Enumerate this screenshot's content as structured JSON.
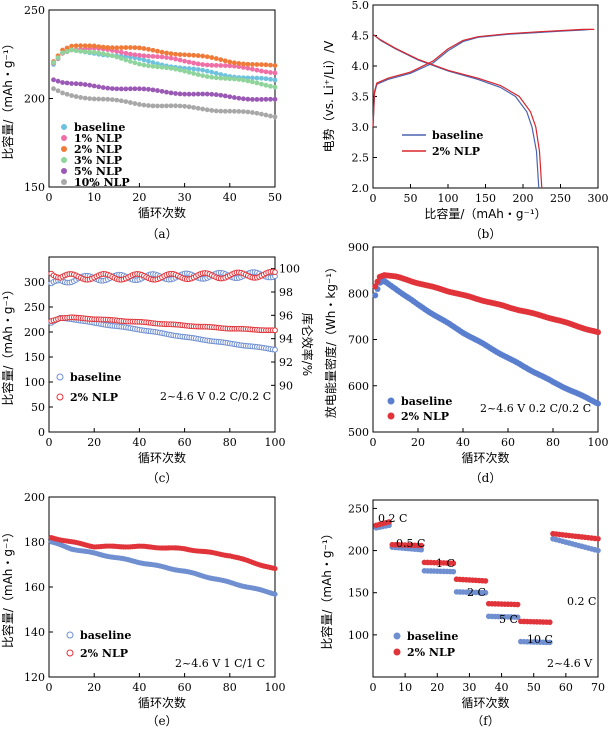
{
  "chart_data": [
    {
      "type": "scatter",
      "caption": "（a）",
      "xlabel": "循环次数",
      "ylabel": "比容量/（mAh・g⁻¹）",
      "xlim": [
        0,
        50
      ],
      "ylim": [
        150,
        250
      ],
      "xticks": [
        0,
        10,
        20,
        30,
        40,
        50
      ],
      "yticks": [
        150,
        200,
        250
      ],
      "legend": "bottom-left",
      "series": [
        {
          "name": "baseline",
          "color": "#6fc2df",
          "anchors": [
            [
              1,
              219
            ],
            [
              3,
              225
            ],
            [
              5,
              227
            ],
            [
              10,
              226
            ],
            [
              20,
              222
            ],
            [
              30,
              217
            ],
            [
              40,
              213
            ],
            [
              50,
              210
            ]
          ]
        },
        {
          "name": "1% NLP",
          "color": "#f06fa6",
          "anchors": [
            [
              1,
              220
            ],
            [
              3,
              226
            ],
            [
              5,
              228
            ],
            [
              10,
              228
            ],
            [
              20,
              225
            ],
            [
              30,
              221
            ],
            [
              40,
              218
            ],
            [
              50,
              215
            ]
          ]
        },
        {
          "name": "2% NLP",
          "color": "#f07b39",
          "anchors": [
            [
              1,
              221
            ],
            [
              3,
              227
            ],
            [
              5,
              229
            ],
            [
              10,
              230
            ],
            [
              20,
              228
            ],
            [
              30,
              225
            ],
            [
              40,
              221
            ],
            [
              50,
              218
            ]
          ]
        },
        {
          "name": "3% NLP",
          "color": "#8fd49a",
          "anchors": [
            [
              1,
              220
            ],
            [
              3,
              226
            ],
            [
              5,
              228
            ],
            [
              10,
              226
            ],
            [
              20,
              220
            ],
            [
              30,
              215
            ],
            [
              40,
              211
            ],
            [
              50,
              207
            ]
          ]
        },
        {
          "name": "5% NLP",
          "color": "#9b59b6",
          "anchors": [
            [
              1,
              211
            ],
            [
              3,
              209
            ],
            [
              5,
              208
            ],
            [
              10,
              207
            ],
            [
              20,
              205
            ],
            [
              30,
              203
            ],
            [
              40,
              201
            ],
            [
              50,
              199
            ]
          ]
        },
        {
          "name": "10% NLP",
          "color": "#a8a8a8",
          "anchors": [
            [
              1,
              205
            ],
            [
              3,
              203
            ],
            [
              5,
              202
            ],
            [
              10,
              200
            ],
            [
              20,
              197
            ],
            [
              30,
              195
            ],
            [
              40,
              193
            ],
            [
              50,
              190
            ]
          ]
        }
      ]
    },
    {
      "type": "line",
      "caption": "（b）",
      "xlabel": "比容量/（mAh・g⁻¹）",
      "ylabel": "电势（vs. Li⁺/Li）/V",
      "xlim": [
        0,
        300
      ],
      "ylim": [
        2.0,
        5.0
      ],
      "xticks": [
        0,
        50,
        100,
        150,
        200,
        250,
        300
      ],
      "yticks": [
        2.0,
        2.5,
        3.0,
        3.5,
        4.0,
        4.5,
        5.0
      ],
      "legend": "lower-middle",
      "series": [
        {
          "name": "baseline",
          "color": "#4a64b0",
          "charge": [
            [
              0,
              3.0
            ],
            [
              2,
              3.55
            ],
            [
              5,
              3.7
            ],
            [
              20,
              3.78
            ],
            [
              50,
              3.88
            ],
            [
              80,
              4.05
            ],
            [
              100,
              4.25
            ],
            [
              120,
              4.4
            ],
            [
              140,
              4.47
            ],
            [
              180,
              4.52
            ],
            [
              220,
              4.55
            ],
            [
              250,
              4.57
            ],
            [
              280,
              4.59
            ],
            [
              290,
              4.6
            ]
          ],
          "discharge": [
            [
              0,
              4.52
            ],
            [
              10,
              4.42
            ],
            [
              30,
              4.28
            ],
            [
              60,
              4.1
            ],
            [
              100,
              3.92
            ],
            [
              140,
              3.78
            ],
            [
              170,
              3.65
            ],
            [
              190,
              3.5
            ],
            [
              205,
              3.25
            ],
            [
              212,
              3.0
            ],
            [
              218,
              2.6
            ],
            [
              221,
              2.0
            ]
          ]
        },
        {
          "name": "2% NLP",
          "color": "#d9262c",
          "charge": [
            [
              0,
              3.0
            ],
            [
              2,
              3.58
            ],
            [
              5,
              3.72
            ],
            [
              20,
              3.8
            ],
            [
              50,
              3.9
            ],
            [
              80,
              4.08
            ],
            [
              100,
              4.28
            ],
            [
              120,
              4.42
            ],
            [
              140,
              4.48
            ],
            [
              180,
              4.53
            ],
            [
              220,
              4.56
            ],
            [
              250,
              4.58
            ],
            [
              280,
              4.6
            ],
            [
              295,
              4.6
            ]
          ],
          "discharge": [
            [
              0,
              4.52
            ],
            [
              10,
              4.43
            ],
            [
              30,
              4.29
            ],
            [
              60,
              4.11
            ],
            [
              100,
              3.93
            ],
            [
              140,
              3.8
            ],
            [
              170,
              3.68
            ],
            [
              195,
              3.5
            ],
            [
              210,
              3.25
            ],
            [
              217,
              3.0
            ],
            [
              222,
              2.6
            ],
            [
              225,
              2.0
            ]
          ]
        }
      ]
    },
    {
      "type": "scatter",
      "caption": "（c）",
      "xlabel": "循环次数",
      "ylabel": "比容量/（mAh・g⁻¹）",
      "y2label": "库仑效率/%",
      "annotation": "2~4.6 V  0.2 C/0.2 C",
      "xlim": [
        0,
        100
      ],
      "ylim": [
        0,
        350
      ],
      "y2lim": [
        86,
        101
      ],
      "xticks": [
        0,
        20,
        40,
        60,
        80,
        100
      ],
      "yticks": [
        0,
        50,
        100,
        150,
        200,
        250,
        300
      ],
      "y2ticks": [
        90,
        92,
        94,
        96,
        98,
        100
      ],
      "legend": "bottom-left",
      "series": [
        {
          "name": "baseline",
          "color": "#6f8fd0",
          "anchors": [
            [
              1,
              218
            ],
            [
              5,
              228
            ],
            [
              10,
              226
            ],
            [
              20,
              218
            ],
            [
              40,
              205
            ],
            [
              60,
              190
            ],
            [
              80,
              177
            ],
            [
              100,
              165
            ]
          ],
          "efficiency": [
            [
              1,
              98.5
            ],
            [
              5,
              99.0
            ],
            [
              20,
              99.2
            ],
            [
              50,
              99.3
            ],
            [
              100,
              99.5
            ]
          ]
        },
        {
          "name": "2% NLP",
          "color": "#e0343a",
          "anchors": [
            [
              1,
              222
            ],
            [
              5,
              228
            ],
            [
              10,
              229
            ],
            [
              20,
              226
            ],
            [
              40,
              220
            ],
            [
              60,
              213
            ],
            [
              80,
              207
            ],
            [
              100,
              203
            ]
          ],
          "efficiency": [
            [
              1,
              99.8
            ],
            [
              5,
              99.3
            ],
            [
              20,
              99.3
            ],
            [
              50,
              99.3
            ],
            [
              100,
              99.5
            ]
          ]
        }
      ]
    },
    {
      "type": "scatter",
      "caption": "（d）",
      "xlabel": "循环次数",
      "ylabel": "放电能量密度/（Wh・kg⁻¹）",
      "annotation": "2~4.6 V  0.2 C/0.2 C",
      "xlim": [
        0,
        100
      ],
      "ylim": [
        500,
        900
      ],
      "xticks": [
        0,
        20,
        40,
        60,
        80,
        100
      ],
      "yticks": [
        500,
        600,
        700,
        800,
        900
      ],
      "legend": "bottom-left",
      "series": [
        {
          "name": "baseline",
          "color": "#5b7fcf",
          "anchors": [
            [
              1,
              795
            ],
            [
              3,
              822
            ],
            [
              5,
              826
            ],
            [
              10,
              810
            ],
            [
              20,
              775
            ],
            [
              40,
              715
            ],
            [
              60,
              660
            ],
            [
              80,
              608
            ],
            [
              100,
              562
            ]
          ]
        },
        {
          "name": "2% NLP",
          "color": "#e0343a",
          "anchors": [
            [
              1,
              815
            ],
            [
              3,
              836
            ],
            [
              5,
              840
            ],
            [
              10,
              836
            ],
            [
              20,
              822
            ],
            [
              40,
              796
            ],
            [
              60,
              770
            ],
            [
              80,
              745
            ],
            [
              100,
              715
            ]
          ]
        }
      ]
    },
    {
      "type": "scatter",
      "caption": "（e）",
      "xlabel": "循环次数",
      "ylabel": "比容量/（mAh・g⁻¹）",
      "annotation": "2~4.6 V  1 C/1 C",
      "xlim": [
        0,
        100
      ],
      "ylim": [
        120,
        200
      ],
      "xticks": [
        0,
        20,
        40,
        60,
        80,
        100
      ],
      "yticks": [
        120,
        140,
        160,
        180,
        200
      ],
      "legend": "bottom-left",
      "series": [
        {
          "name": "baseline",
          "color": "#6f8fd0",
          "anchors": [
            [
              1,
              180
            ],
            [
              10,
              177
            ],
            [
              20,
              175
            ],
            [
              40,
              171
            ],
            [
              60,
              167
            ],
            [
              80,
              162
            ],
            [
              100,
              157
            ]
          ]
        },
        {
          "name": "2% NLP",
          "color": "#e0343a",
          "anchors": [
            [
              1,
              182
            ],
            [
              10,
              180
            ],
            [
              20,
              178
            ],
            [
              40,
              178
            ],
            [
              60,
              177
            ],
            [
              80,
              174
            ],
            [
              100,
              168
            ]
          ]
        }
      ]
    },
    {
      "type": "scatter",
      "caption": "（f）",
      "xlabel": "循环次数",
      "ylabel": "比容量/（mAh・g⁻¹）",
      "annotation": "2~4.6 V",
      "rate_labels": [
        "0.2 C",
        "0.5 C",
        "1 C",
        "2 C",
        "5 C",
        "10 C",
        "0.2 C"
      ],
      "xlim": [
        0,
        70
      ],
      "ylim": [
        50,
        260
      ],
      "xticks": [
        0,
        10,
        20,
        30,
        40,
        50,
        60,
        70
      ],
      "yticks": [
        100,
        150,
        200,
        250
      ],
      "legend": "bottom-left",
      "series": [
        {
          "name": "baseline",
          "color": "#6f8fd0",
          "segments": [
            [
              1,
              5,
              227,
              230
            ],
            [
              6,
              15,
              204,
              201
            ],
            [
              16,
              25,
              176,
              175
            ],
            [
              26,
              35,
              151,
              150
            ],
            [
              36,
              45,
              122,
              121
            ],
            [
              46,
              55,
              92,
              91
            ],
            [
              56,
              70,
              214,
              200
            ]
          ]
        },
        {
          "name": "2% NLP",
          "color": "#e0343a",
          "segments": [
            [
              1,
              5,
              230,
              234
            ],
            [
              6,
              15,
              207,
              206
            ],
            [
              16,
              25,
              186,
              185
            ],
            [
              26,
              35,
              166,
              164
            ],
            [
              36,
              45,
              137,
              136
            ],
            [
              46,
              55,
              116,
              115
            ],
            [
              56,
              70,
              220,
              214
            ]
          ]
        }
      ]
    }
  ]
}
